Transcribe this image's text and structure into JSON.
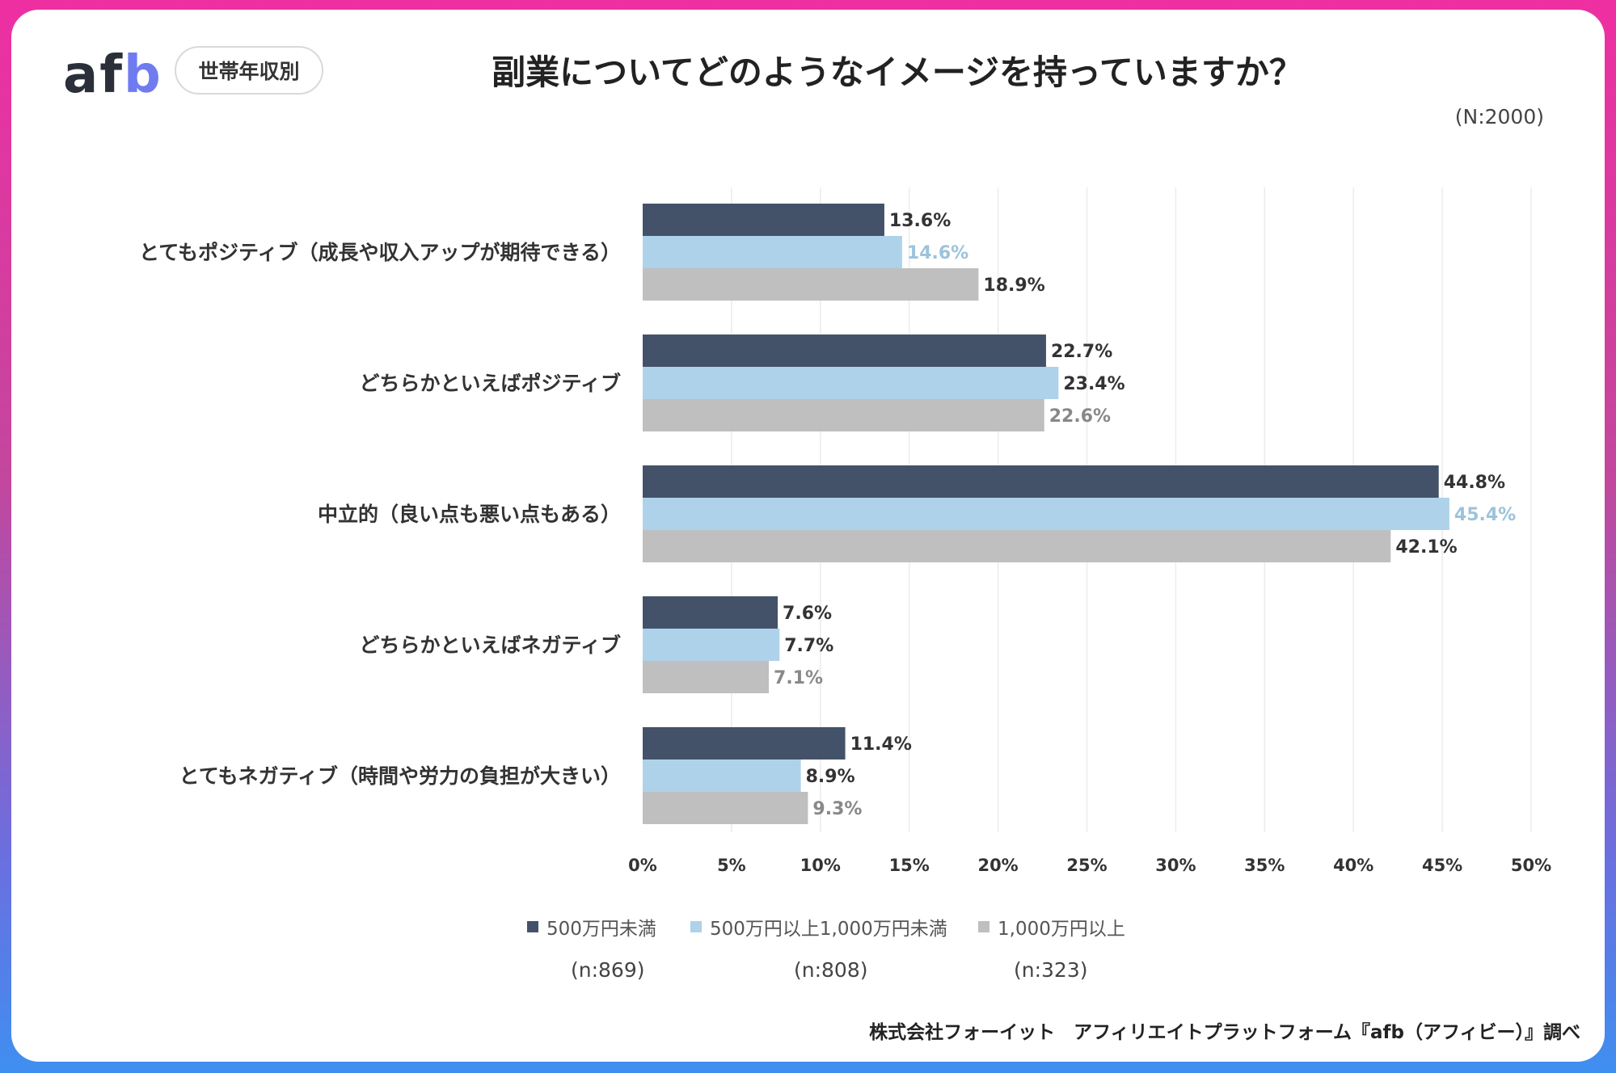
{
  "header": {
    "logo_text_main": "af",
    "logo_text_accent": "b",
    "badge": "世帯年収別",
    "title": "副業についてどのようなイメージを持っていますか？",
    "sample_total": "(N:2000)"
  },
  "colors": {
    "series_1": "#435269",
    "series_2": "#aed2ea",
    "series_3": "#bfbfbf",
    "frame_top": "#ee2fa1",
    "frame_bottom": "#3f8ff0"
  },
  "chart_data": {
    "type": "bar",
    "orientation": "horizontal",
    "categories": [
      "とてもポジティブ（成長や収入アップが期待できる）",
      "どちらかといえばポジティブ",
      "中立的（良い点も悪い点もある）",
      "どちらかといえばネガティブ",
      "とてもネガティブ（時間や労力の負担が大きい）"
    ],
    "series": [
      {
        "name": "500万円未満",
        "values": [
          13.6,
          22.7,
          44.8,
          7.6,
          11.4
        ],
        "labels": [
          "13.6%",
          "22.7%",
          "44.8%",
          "7.6%",
          "11.4%"
        ]
      },
      {
        "name": "500万円以上1,000万円未満",
        "values": [
          14.6,
          23.4,
          45.4,
          7.7,
          8.9
        ],
        "labels": [
          "14.6%",
          "23.4%",
          "45.4%",
          "7.7%",
          "8.9%"
        ]
      },
      {
        "name": "1,000万円以上",
        "values": [
          18.9,
          22.6,
          42.1,
          7.1,
          9.3
        ],
        "labels": [
          "18.9%",
          "22.6%",
          "42.1%",
          "7.1%",
          "9.3%"
        ]
      }
    ],
    "label_colors": [
      [
        "#333333",
        "#333333",
        "#333333",
        "#333333",
        "#333333"
      ],
      [
        "#9cc3dc",
        "#333333",
        "#9cc3dc",
        "#333333",
        "#333333"
      ],
      [
        "#333333",
        "#888888",
        "#333333",
        "#888888",
        "#888888"
      ]
    ],
    "xlim": [
      0,
      50
    ],
    "xticks": [
      "0%",
      "5%",
      "10%",
      "15%",
      "20%",
      "25%",
      "30%",
      "35%",
      "40%",
      "45%",
      "50%"
    ],
    "grid": true,
    "legend_position": "bottom"
  },
  "legend": {
    "items": [
      {
        "label": "500万円未満",
        "n": "(n:869)"
      },
      {
        "label": "500万円以上1,000万円未満",
        "n": "(n:808)"
      },
      {
        "label": "1,000万円以上",
        "n": "(n:323)"
      }
    ]
  },
  "footer": {
    "source": "株式会社フォーイット　アフィリエイトプラットフォーム『afb（アフィビー）』調べ"
  }
}
